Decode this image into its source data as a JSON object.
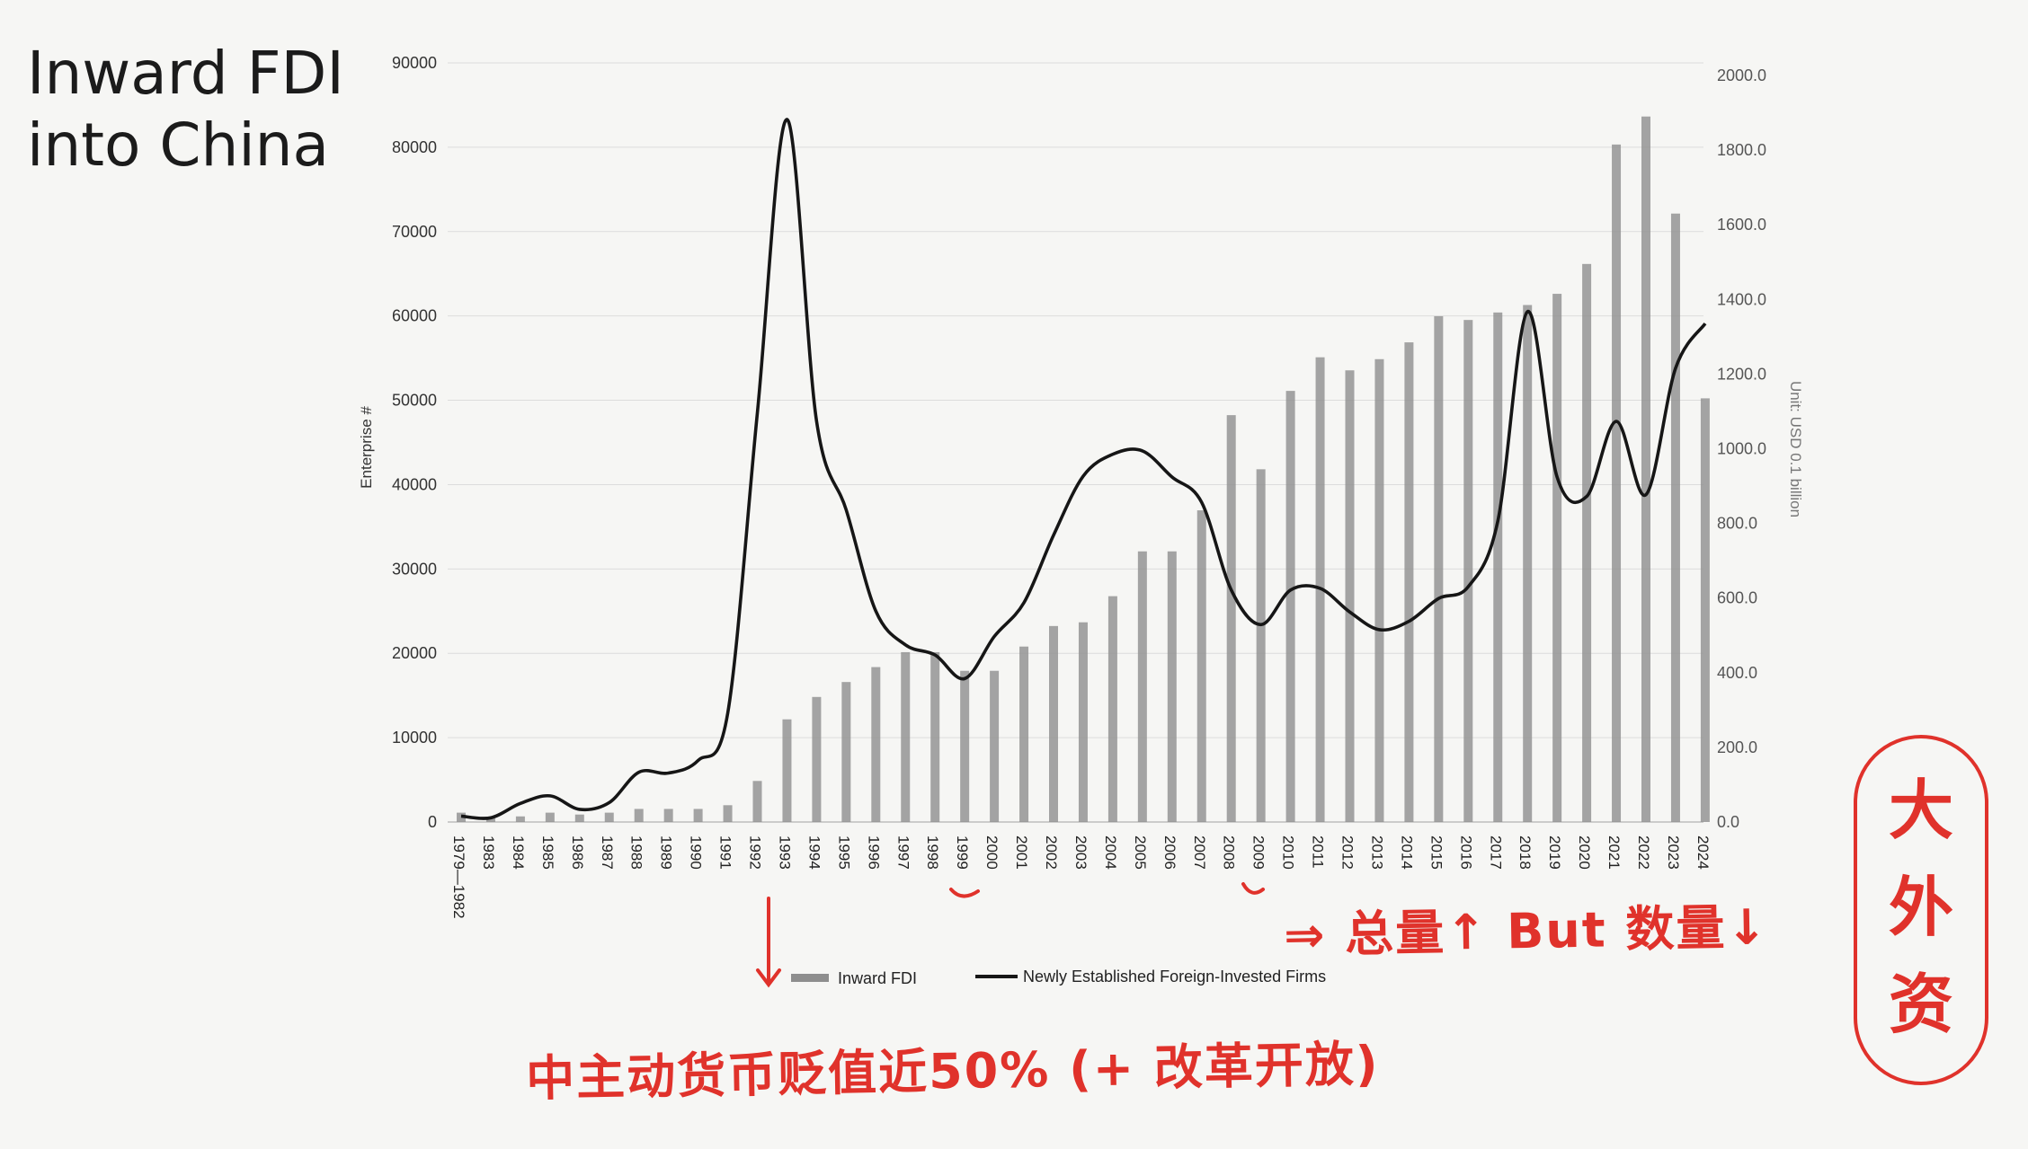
{
  "slide": {
    "title_line1": "Inward FDI",
    "title_line2": "into China"
  },
  "chart_data": {
    "type": "bar",
    "categories": [
      "1979—1982",
      "1983",
      "1984",
      "1985",
      "1986",
      "1987",
      "1988",
      "1989",
      "1990",
      "1991",
      "1992",
      "1993",
      "1994",
      "1995",
      "1996",
      "1997",
      "1998",
      "1999",
      "2000",
      "2001",
      "2002",
      "2003",
      "2004",
      "2005",
      "2006",
      "2007",
      "2008",
      "2009",
      "2010",
      "2011",
      "2012",
      "2013",
      "2014",
      "2015",
      "2016",
      "2017",
      "2018",
      "2019",
      "2020",
      "2021",
      "2022",
      "2023",
      "2024"
    ],
    "series": [
      {
        "name": "Inward FDI",
        "type": "bar",
        "axis": "right",
        "color": "#8e8e8e",
        "values": [
          25,
          10,
          15,
          25,
          20,
          25,
          35,
          35,
          35,
          45,
          110,
          275,
          335,
          375,
          415,
          455,
          455,
          405,
          405,
          470,
          525,
          535,
          605,
          725,
          725,
          835,
          1090,
          945,
          1155,
          1245,
          1210,
          1240,
          1285,
          1355,
          1345,
          1365,
          1385,
          1415,
          1495,
          1815,
          1890,
          1630,
          1135
        ]
      },
      {
        "name": "Newly Established Foreign-Invested Firms",
        "type": "line",
        "axis": "left",
        "color": "#161616",
        "values": [
          700,
          500,
          2200,
          3100,
          1500,
          2300,
          5900,
          5800,
          7300,
          12900,
          48500,
          83300,
          47500,
          37000,
          25000,
          21000,
          19800,
          17000,
          22000,
          26000,
          34000,
          41000,
          43600,
          44000,
          40900,
          37900,
          27500,
          23400,
          27500,
          27700,
          24900,
          22800,
          23800,
          26500,
          27900,
          35700,
          60500,
          40900,
          38600,
          47500,
          38800,
          53800,
          59100
        ]
      }
    ],
    "left_axis": {
      "label": "Enterprise #",
      "min": 0,
      "max": 90000,
      "ticks": [
        "0",
        "10000",
        "20000",
        "30000",
        "40000",
        "50000",
        "60000",
        "70000",
        "80000",
        "90000"
      ]
    },
    "right_axis": {
      "label": "Unit: USD 0.1 billion",
      "min": 0,
      "max": 2000,
      "ticks": [
        "0.0",
        "200.0",
        "400.0",
        "600.0",
        "800.0",
        "1000.0",
        "1200.0",
        "1400.0",
        "1600.0",
        "1800.0",
        "2000.0"
      ]
    },
    "grid": true,
    "legend_position": "bottom"
  },
  "annotations": {
    "bottom_note": "中主动货币贬值近50% (+ 改革开放)",
    "right_note": "⇒ 总量↑ But 数量↓",
    "circled_note": "大外资"
  }
}
